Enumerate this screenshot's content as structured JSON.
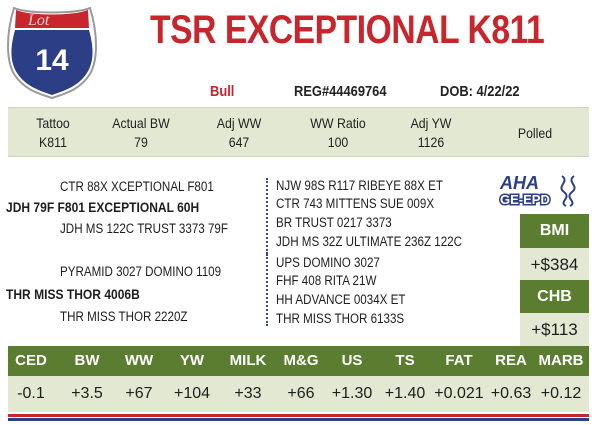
{
  "lot": {
    "number": "14",
    "badge_text": "Lot"
  },
  "animal": {
    "name": "TSR EXCEPTIONAL K811",
    "sex": "Bull",
    "registration": "REG#44469764",
    "dob": "DOB: 4/22/22"
  },
  "stats": [
    {
      "label": "Tattoo",
      "value": "K811"
    },
    {
      "label": "Actual BW",
      "value": "79"
    },
    {
      "label": "Adj WW",
      "value": "647"
    },
    {
      "label": "WW Ratio",
      "value": "100"
    },
    {
      "label": "Adj YW",
      "value": "1126"
    },
    {
      "label": "Polled",
      "value": ""
    }
  ],
  "pedigree": {
    "sire": "JDH 79F F801 EXCEPTIONAL 60H",
    "sire_sire": "CTR 88X XCEPTIONAL F801",
    "sire_dam": "JDH MS 122C TRUST 3373 79F",
    "dam": "THR MISS THOR 4006B",
    "dam_sire": "PYRAMID 3027 DOMINO 1109",
    "dam_dam": "THR MISS THOR 2220Z",
    "ancestors": [
      "NJW 98S R117 RIBEYE 88X ET",
      "CTR 743 MITTENS SUE 009X",
      "BR TRUST 0217 3373",
      "JDH MS 32Z ULTIMATE 236Z 122C",
      "UPS DOMINO 3027",
      "FHF 408 RITA 21W",
      "HH ADVANCE 0034X ET",
      "THR MISS THOR 6133S"
    ]
  },
  "logo": {
    "top": "AHA",
    "bottom": "GE-EPD",
    "color": "#2c3e86"
  },
  "indexes": [
    {
      "label": "BMI",
      "value": "+$384"
    },
    {
      "label": "CHB",
      "value": "+$113"
    }
  ],
  "epds": {
    "headers": [
      "CED",
      "BW",
      "WW",
      "YW",
      "MILK",
      "M&G",
      "US",
      "TS",
      "FAT",
      "REA",
      "MARB"
    ],
    "values": [
      "-0.1",
      "+3.5",
      "+67",
      "+104",
      "+33",
      "+66",
      "+1.30",
      "+1.40",
      "+0.021",
      "+0.63",
      "+0.12"
    ]
  },
  "colors": {
    "accent_red": "#c8252c",
    "accent_green": "#5a7d2f",
    "panel": "#e3e8d2",
    "navy": "#2c3e86"
  }
}
